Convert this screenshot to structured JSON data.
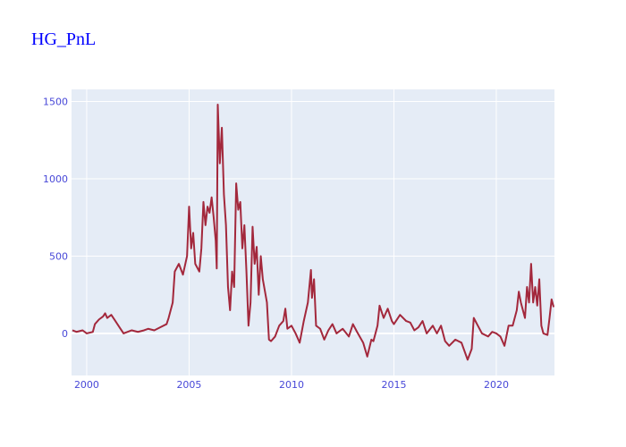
{
  "chart_data": {
    "type": "line",
    "title": "HG_PnL",
    "x": [
      1999.3,
      1999.5,
      1999.8,
      2000.0,
      2000.3,
      2000.4,
      2000.6,
      2000.8,
      2000.9,
      2001.0,
      2001.2,
      2001.4,
      2001.6,
      2001.8,
      2002.0,
      2002.2,
      2002.5,
      2002.8,
      2003.0,
      2003.3,
      2003.6,
      2003.9,
      2004.0,
      2004.2,
      2004.3,
      2004.5,
      2004.7,
      2004.9,
      2005.0,
      2005.1,
      2005.2,
      2005.3,
      2005.5,
      2005.6,
      2005.7,
      2005.8,
      2005.9,
      2006.0,
      2006.1,
      2006.2,
      2006.3,
      2006.35,
      2006.4,
      2006.5,
      2006.6,
      2006.7,
      2006.8,
      2006.9,
      2007.0,
      2007.1,
      2007.2,
      2007.3,
      2007.4,
      2007.5,
      2007.6,
      2007.7,
      2007.8,
      2007.9,
      2008.0,
      2008.1,
      2008.2,
      2008.3,
      2008.4,
      2008.5,
      2008.6,
      2008.8,
      2008.9,
      2009.0,
      2009.2,
      2009.4,
      2009.6,
      2009.7,
      2009.8,
      2010.0,
      2010.2,
      2010.4,
      2010.6,
      2010.8,
      2010.95,
      2011.0,
      2011.1,
      2011.2,
      2011.4,
      2011.6,
      2011.8,
      2012.0,
      2012.2,
      2012.5,
      2012.8,
      2013.0,
      2013.2,
      2013.5,
      2013.7,
      2013.9,
      2014.0,
      2014.2,
      2014.3,
      2014.5,
      2014.7,
      2014.9,
      2015.0,
      2015.3,
      2015.6,
      2015.8,
      2016.0,
      2016.2,
      2016.4,
      2016.6,
      2016.9,
      2017.1,
      2017.3,
      2017.5,
      2017.7,
      2018.0,
      2018.3,
      2018.6,
      2018.8,
      2018.9,
      2019.1,
      2019.3,
      2019.6,
      2019.8,
      2020.0,
      2020.2,
      2020.4,
      2020.6,
      2020.8,
      2021.0,
      2021.1,
      2021.2,
      2021.4,
      2021.5,
      2021.6,
      2021.7,
      2021.8,
      2021.9,
      2022.0,
      2022.1,
      2022.2,
      2022.3,
      2022.5,
      2022.6,
      2022.7,
      2022.8
    ],
    "series": [
      {
        "color": "#a3283c",
        "values": [
          20,
          10,
          20,
          0,
          10,
          60,
          90,
          110,
          130,
          100,
          120,
          80,
          40,
          0,
          10,
          20,
          10,
          20,
          30,
          20,
          40,
          60,
          100,
          200,
          400,
          450,
          380,
          500,
          820,
          550,
          650,
          450,
          400,
          550,
          850,
          700,
          820,
          780,
          880,
          750,
          600,
          420,
          1480,
          1100,
          1330,
          900,
          700,
          300,
          150,
          400,
          300,
          970,
          800,
          850,
          550,
          700,
          400,
          50,
          200,
          690,
          450,
          560,
          250,
          500,
          350,
          200,
          -40,
          -50,
          -20,
          50,
          80,
          160,
          30,
          50,
          0,
          -60,
          80,
          200,
          410,
          230,
          350,
          50,
          30,
          -40,
          20,
          60,
          0,
          30,
          -20,
          60,
          10,
          -60,
          -150,
          -40,
          -50,
          50,
          180,
          100,
          160,
          80,
          60,
          120,
          80,
          70,
          20,
          40,
          80,
          0,
          50,
          0,
          50,
          -50,
          -80,
          -40,
          -60,
          -170,
          -100,
          100,
          50,
          0,
          -20,
          10,
          0,
          -20,
          -80,
          50,
          50,
          150,
          270,
          200,
          100,
          300,
          200,
          450,
          200,
          300,
          180,
          350,
          50,
          0,
          -10,
          100,
          220,
          170
        ]
      }
    ],
    "xlim": [
      1999.26,
      2022.84
    ],
    "xticks": [
      2000,
      2005,
      2010,
      2015,
      2020
    ],
    "ylim": [
      -272,
      1578
    ],
    "yticks": [
      0,
      500,
      1000,
      1500
    ],
    "grid": true
  }
}
